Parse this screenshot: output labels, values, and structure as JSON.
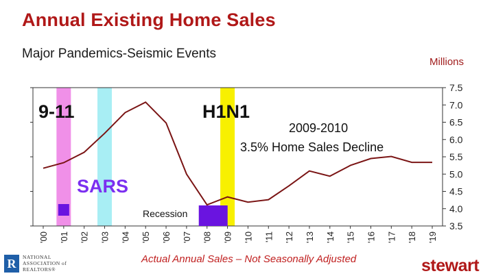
{
  "header": {
    "title": "Annual Existing Home Sales",
    "subtitle": "Major Pandemics-Seismic Events",
    "units": "Millions"
  },
  "footer": {
    "note": "Actual Annual Sales – Not Seasonally Adjusted",
    "brand": "stewart",
    "nar_logo_text": "NATIONAL ASSOCIATION of REALTORS"
  },
  "colors": {
    "title": "#b01818",
    "line": "#7a1414",
    "event_911": "#f090e8",
    "event_sars": "#a8eef4",
    "event_h1n1": "#f8f000",
    "recession_box": "#6a14e0",
    "sars_label": "#7b2ff0"
  },
  "chart_data": {
    "type": "line",
    "title": "",
    "xlabel": "",
    "ylabel": "Millions",
    "categories": [
      "'00",
      "'01",
      "'02",
      "'03",
      "'04",
      "'05",
      "'06",
      "'07",
      "'08",
      "'09",
      "'10",
      "'11",
      "'12",
      "'13",
      "'14",
      "'15",
      "'16",
      "'17",
      "'18",
      "'19"
    ],
    "series": [
      {
        "values": [
          5.17,
          5.33,
          5.63,
          6.18,
          6.78,
          7.08,
          6.48,
          5.0,
          4.11,
          4.34,
          4.19,
          4.26,
          4.66,
          5.09,
          4.94,
          5.25,
          5.45,
          5.51,
          5.34,
          5.34
        ]
      }
    ],
    "ylim": [
      3.5,
      7.5
    ],
    "yticks": [
      "3.5",
      "4.0",
      "4.5",
      "5.0",
      "5.5",
      "6.0",
      "6.5",
      "7.0",
      "7.5"
    ],
    "y_axis_side": "right",
    "grid": false,
    "events": [
      {
        "label": "9-11",
        "year_index": 1,
        "color_key": "event_911"
      },
      {
        "label": "SARS",
        "year_index": 3,
        "color_key": "event_sars"
      },
      {
        "label": "H1N1",
        "year_index": 9,
        "color_key": "event_h1n1"
      }
    ],
    "recession_label": "Recession",
    "annotation_line1": "2009-2010",
    "annotation_line2": "3.5% Home Sales Decline"
  }
}
